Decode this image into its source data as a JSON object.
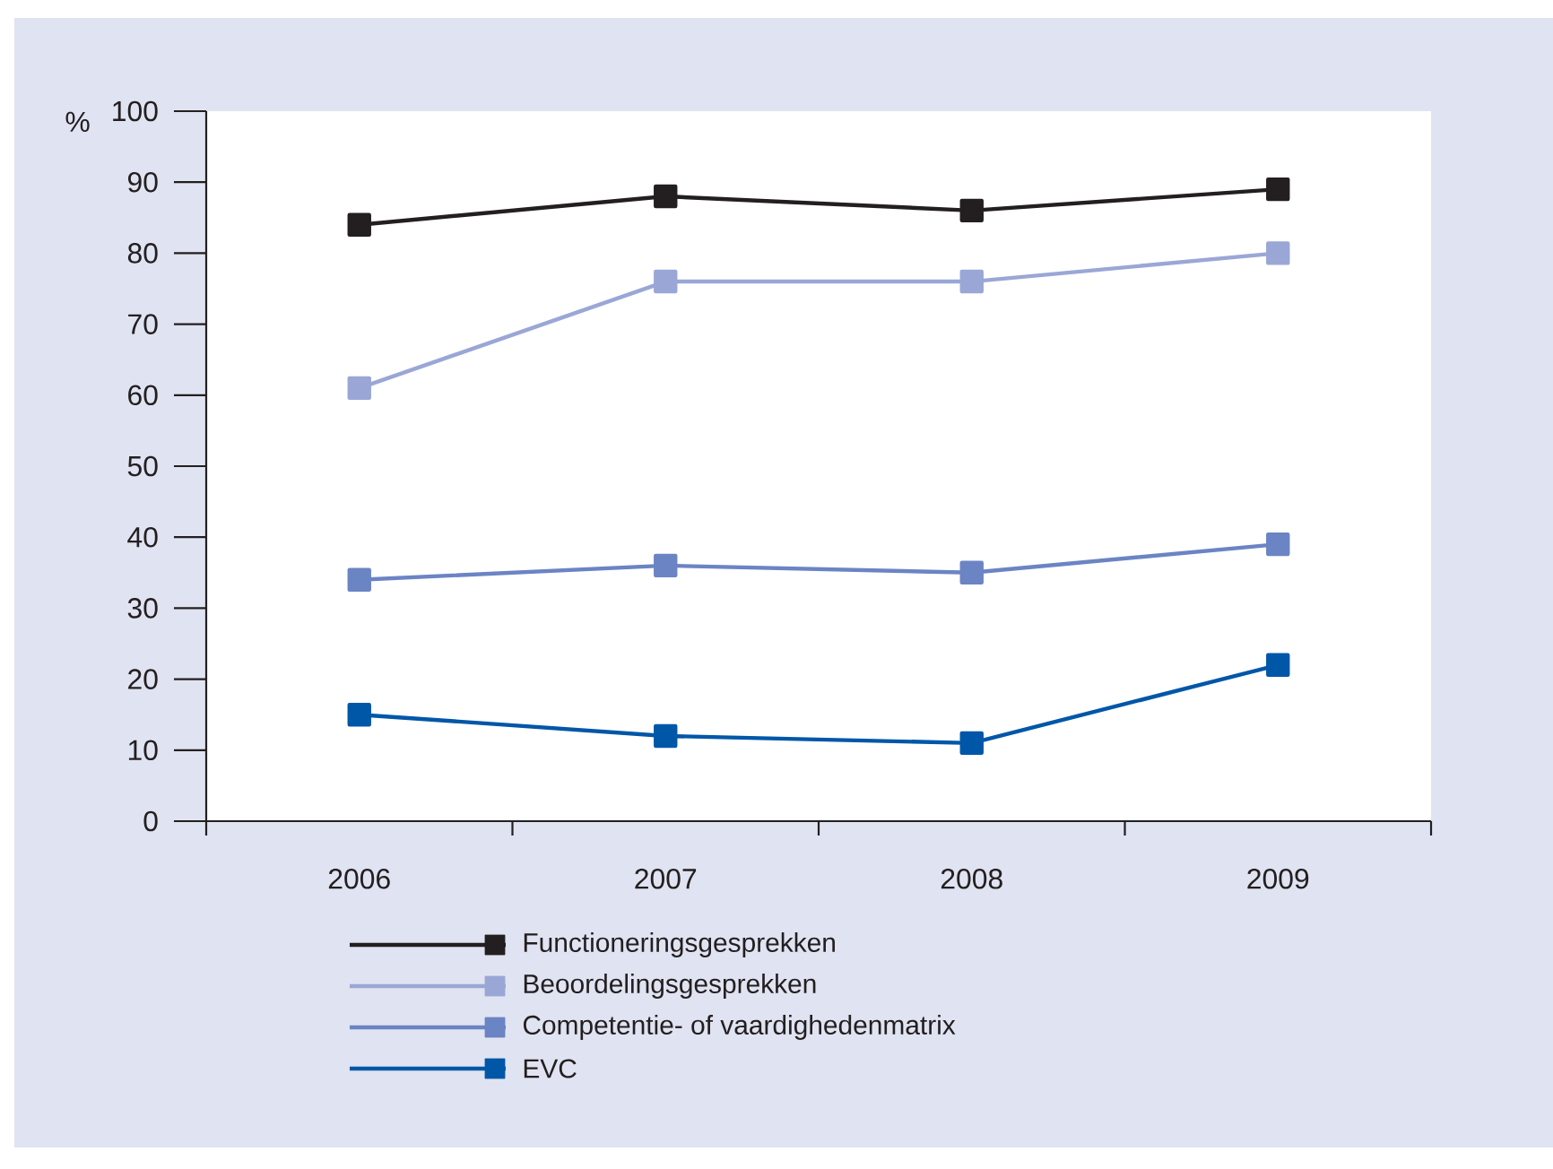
{
  "chart_data": {
    "type": "line",
    "ylabel": "%",
    "categories": [
      "2006",
      "2007",
      "2008",
      "2009"
    ],
    "series": [
      {
        "name": "Functioneringsgesprekken",
        "color": "#231f20",
        "values": [
          84,
          88,
          86,
          89
        ]
      },
      {
        "name": "Beoordelingsgesprekken",
        "color": "#9aa7d6",
        "values": [
          61,
          76,
          76,
          80
        ]
      },
      {
        "name": "Competentie- of vaardighedenmatrix",
        "color": "#6b84c4",
        "values": [
          34,
          36,
          35,
          39
        ]
      },
      {
        "name": "EVC",
        "color": "#0057a8",
        "values": [
          15,
          12,
          11,
          22
        ]
      }
    ],
    "ylim": [
      0,
      100
    ],
    "yticks": [
      0,
      10,
      20,
      30,
      40,
      50,
      60,
      70,
      80,
      90,
      100
    ],
    "marker": "square",
    "line_style": "solid",
    "legend": "bottom"
  }
}
